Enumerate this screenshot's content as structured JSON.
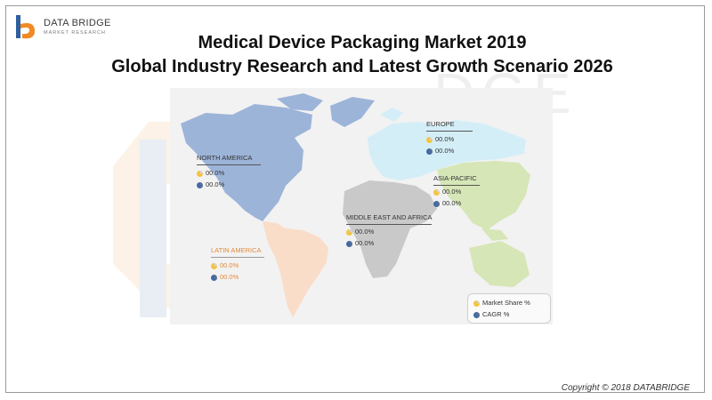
{
  "brand": {
    "name": "DATA BRIDGE",
    "tagline": "MARKET RESEARCH"
  },
  "header": {
    "title_line1": "Medical Device Packaging Market 2019",
    "title_line2": "Global Industry Research and Latest Growth Scenario 2026"
  },
  "regions": [
    {
      "name": "NORTH AMERICA",
      "market_share": "00.0%",
      "cagr": "00.0%",
      "color": "#9db4d9"
    },
    {
      "name": "EUROPE",
      "market_share": "00.0%",
      "cagr": "00.0%",
      "color": "#d4eef7"
    },
    {
      "name": "ASIA-PACIFIC",
      "market_share": "00.0%",
      "cagr": "00.0%",
      "color": "#d6e6b7"
    },
    {
      "name": "MIDDLE EAST AND AFRICA",
      "market_share": "00.0%",
      "cagr": "00.0%",
      "color": "#c9c9c9"
    },
    {
      "name": "LATIN AMERICA",
      "market_share": "00.0%",
      "cagr": "00.0%",
      "color": "#f9ddc9",
      "label_color": "#e08a3c"
    }
  ],
  "legend": {
    "market_share": "Market Share %",
    "cagr": "CAGR %"
  },
  "footer": {
    "copyright": "Copyright © 2018 DATABRIDGE"
  },
  "colors": {
    "accent_orange": "#f08a24",
    "accent_blue": "#2e5f9e",
    "frame": "#9a9a9a"
  }
}
